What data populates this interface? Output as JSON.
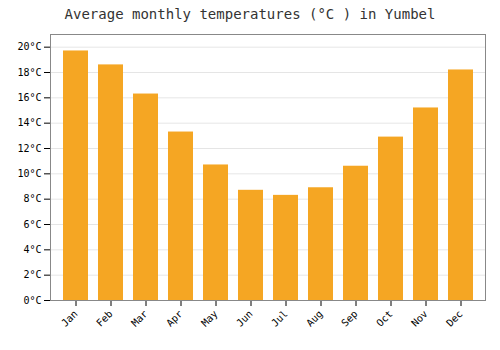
{
  "chart_data": {
    "type": "bar",
    "title": "Average monthly temperatures (°C ) in Yumbel",
    "categories": [
      "Jan",
      "Feb",
      "Mar",
      "Apr",
      "May",
      "Jun",
      "Jul",
      "Aug",
      "Sep",
      "Oct",
      "Nov",
      "Dec"
    ],
    "values": [
      19.7,
      18.6,
      16.3,
      13.3,
      10.7,
      8.7,
      8.3,
      8.9,
      10.6,
      12.9,
      15.2,
      18.2
    ],
    "color": "#F5A623",
    "ylim": [
      0,
      21
    ],
    "yticks": [
      {
        "value": 0,
        "label": "0°C"
      },
      {
        "value": 2,
        "label": "2°C"
      },
      {
        "value": 4,
        "label": "4°C"
      },
      {
        "value": 6,
        "label": "6°C"
      },
      {
        "value": 8,
        "label": "8°C"
      },
      {
        "value": 10,
        "label": "10°C"
      },
      {
        "value": 12,
        "label": "12°C"
      },
      {
        "value": 14,
        "label": "14°C"
      },
      {
        "value": 16,
        "label": "16°C"
      },
      {
        "value": 18,
        "label": "18°C"
      },
      {
        "value": 20,
        "label": "20°C"
      }
    ],
    "grid": true
  }
}
